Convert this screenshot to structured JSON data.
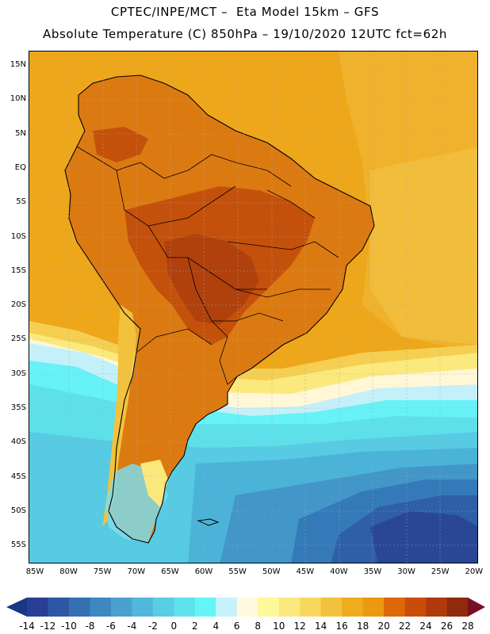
{
  "header": {
    "line1": "CPTEC/INPE/MCT –  Eta Model 15km – GFS",
    "line2": "Absolute Temperature (C) 850hPa – 19/10/2020 12UTC fct=62h"
  },
  "map": {
    "lat_labels": [
      "15N",
      "10N",
      "5N",
      "EQ",
      "5S",
      "10S",
      "15S",
      "20S",
      "25S",
      "30S",
      "35S",
      "40S",
      "45S",
      "50S",
      "55S"
    ],
    "lon_labels": [
      "85W",
      "80W",
      "75W",
      "70W",
      "65W",
      "60W",
      "55W",
      "50W",
      "45W",
      "40W",
      "35W",
      "30W",
      "25W",
      "20W"
    ]
  },
  "colorbar": {
    "labels": [
      "-14",
      "-12",
      "-10",
      "-8",
      "-6",
      "-4",
      "-2",
      "0",
      "2",
      "4",
      "6",
      "8",
      "10",
      "12",
      "14",
      "16",
      "18",
      "20",
      "22",
      "24",
      "26",
      "28"
    ],
    "colors": [
      "#2a3f93",
      "#2d56a5",
      "#3570b3",
      "#3e88c2",
      "#4aa1cf",
      "#52b8db",
      "#58cde4",
      "#5ee3ec",
      "#66f5f7",
      "#c7f2fb",
      "#fff9df",
      "#fef89a",
      "#fbe97d",
      "#f7d75e",
      "#f2c23c",
      "#efac1d",
      "#eb9a10",
      "#dd6807",
      "#c94d08",
      "#b13a0c",
      "#8f2a0d"
    ],
    "under_color": "#183787",
    "over_color": "#7a0f28"
  }
}
